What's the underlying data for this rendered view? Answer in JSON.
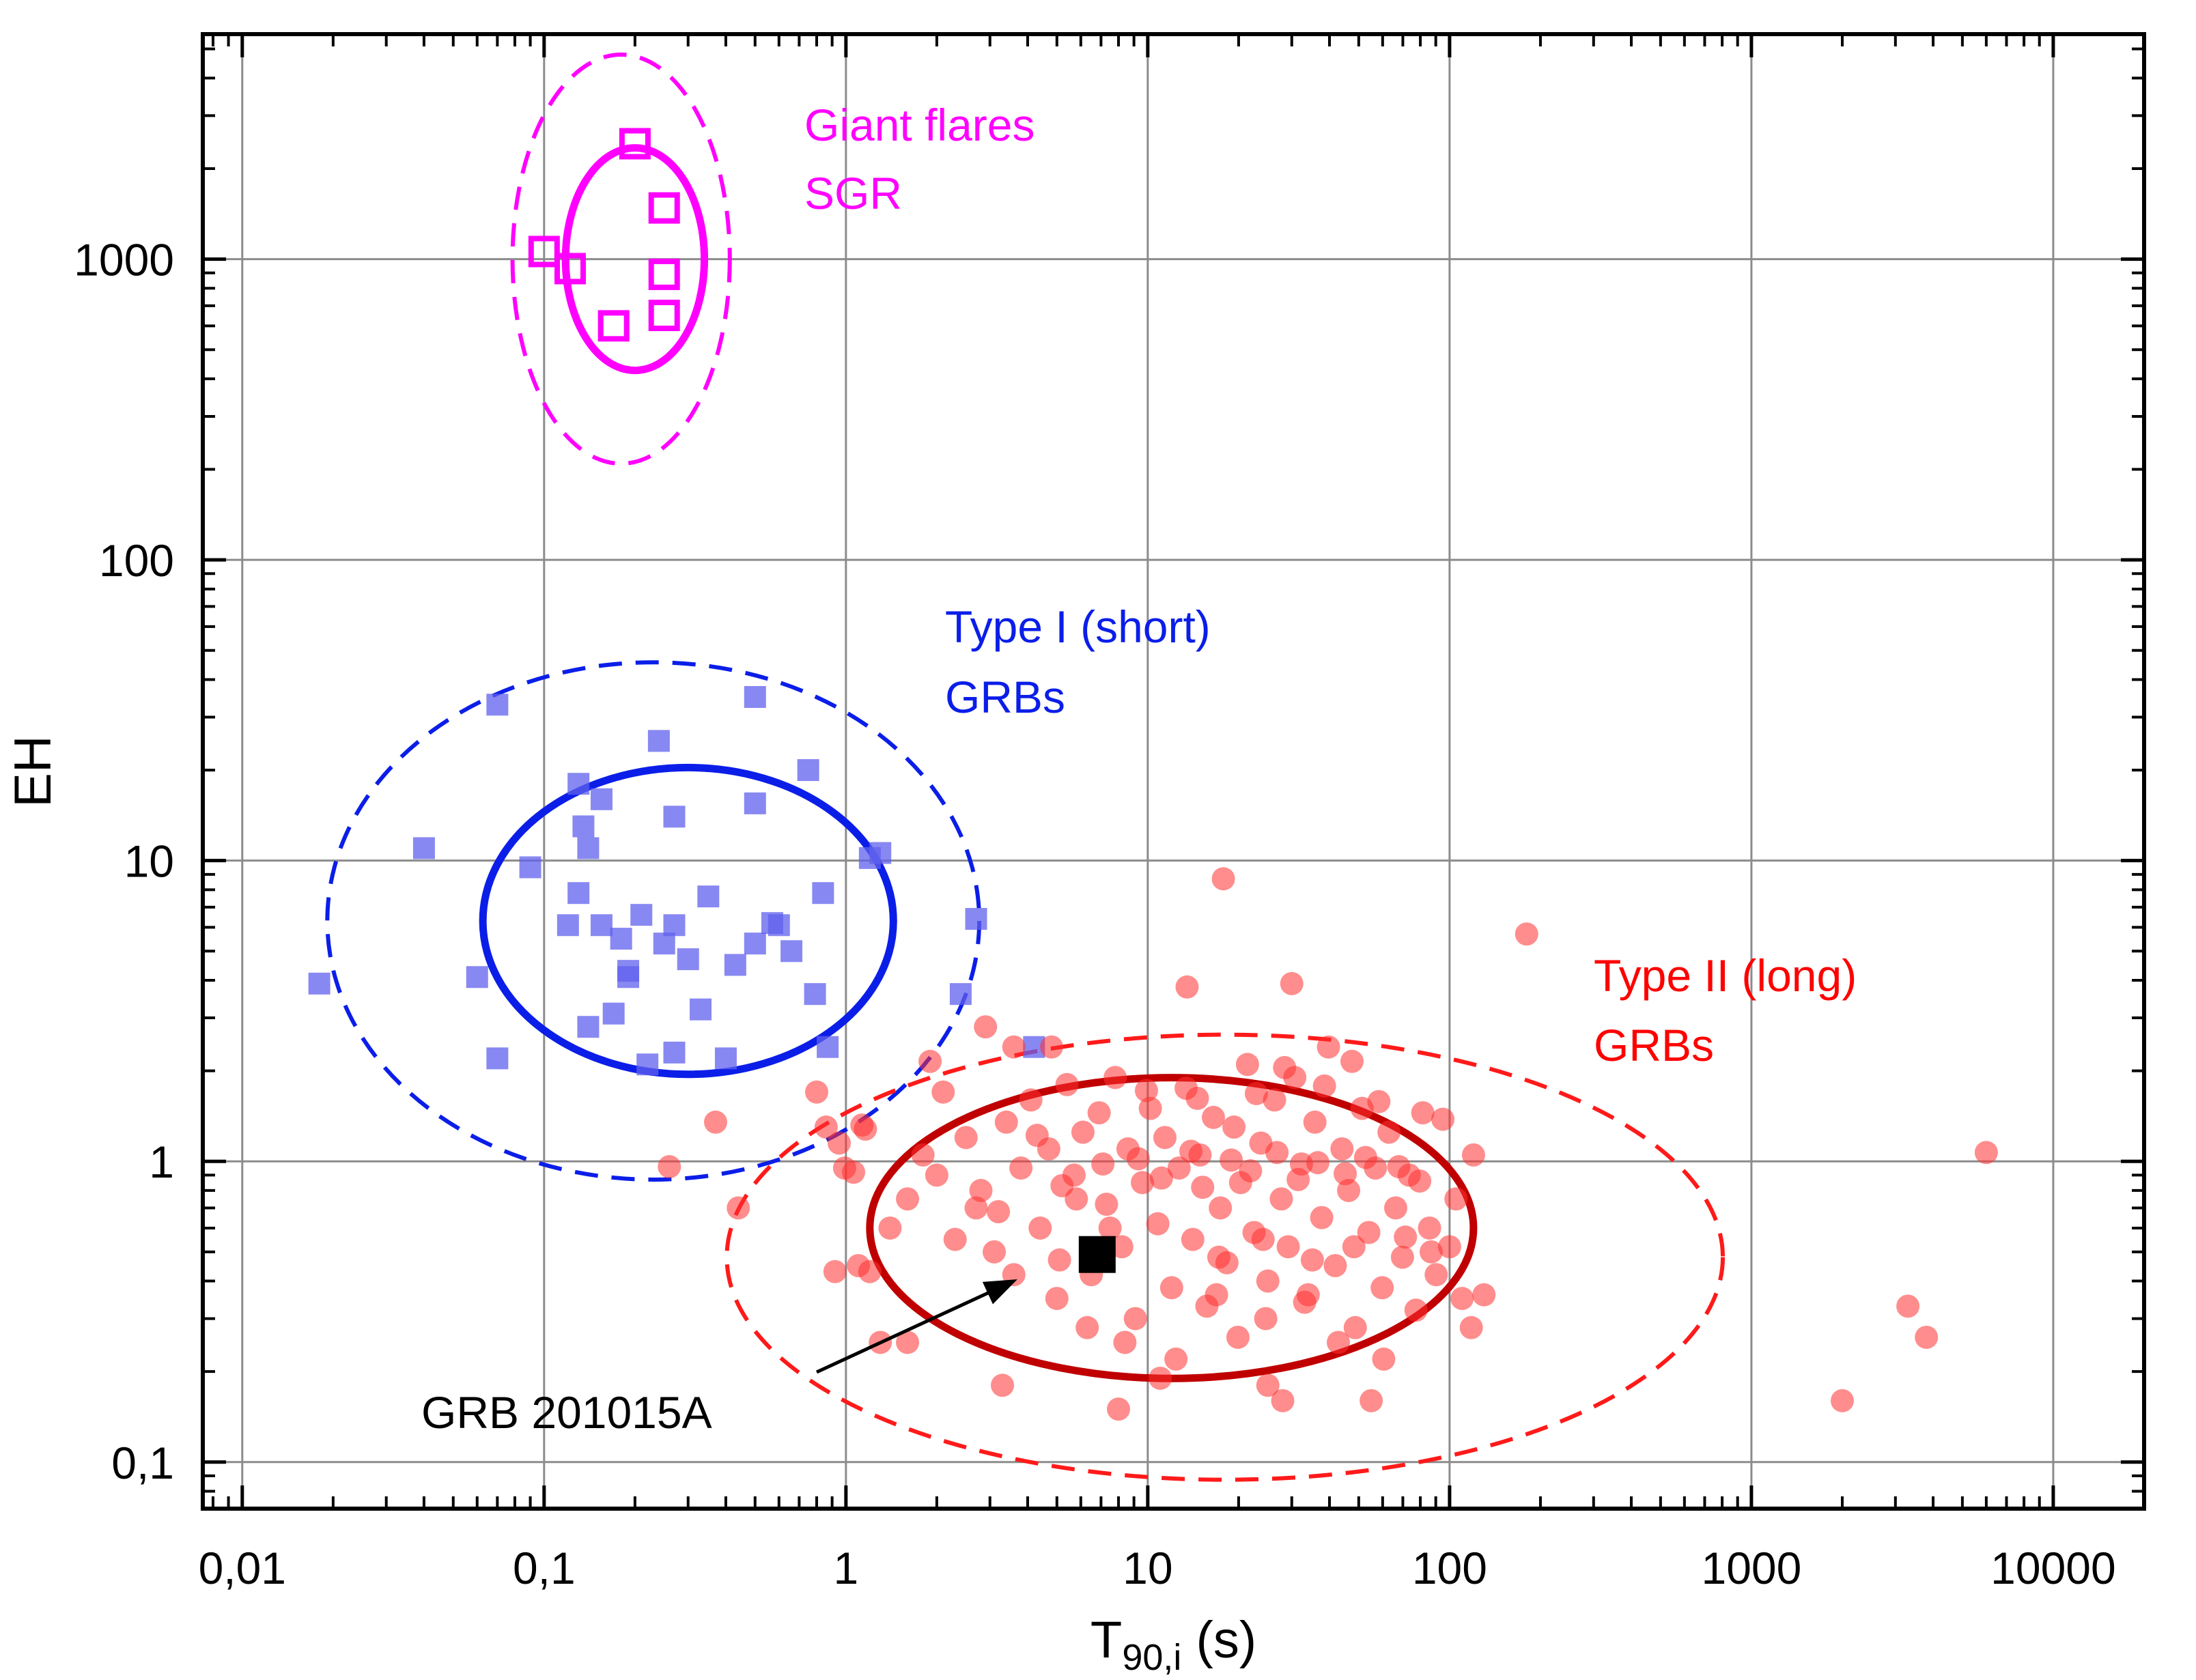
{
  "chart_data": {
    "type": "scatter",
    "xlabel": "T",
    "xlabel_sub": "90,i",
    "xlabel_unit": " (s)",
    "ylabel": "EH",
    "xscale": "log",
    "yscale": "log",
    "xlim": [
      0.0074,
      20000
    ],
    "ylim": [
      0.07,
      5600
    ],
    "grid": true,
    "x_ticks": [
      {
        "value": 0.01,
        "label": "0,01"
      },
      {
        "value": 0.1,
        "label": "0,1"
      },
      {
        "value": 1,
        "label": "1"
      },
      {
        "value": 10,
        "label": "10"
      },
      {
        "value": 100,
        "label": "100"
      },
      {
        "value": 1000,
        "label": "1000"
      },
      {
        "value": 10000,
        "label": "10000"
      }
    ],
    "y_ticks": [
      {
        "value": 0.1,
        "label": "0,1"
      },
      {
        "value": 1,
        "label": "1"
      },
      {
        "value": 10,
        "label": "10"
      },
      {
        "value": 100,
        "label": "100"
      },
      {
        "value": 1000,
        "label": "1000"
      }
    ],
    "series": [
      {
        "name": "Giant flares SGR",
        "color": "#ff00ff",
        "marker": "open-square",
        "points": [
          [
            0.1,
            1060
          ],
          [
            0.122,
            930
          ],
          [
            0.2,
            2420
          ],
          [
            0.25,
            1480
          ],
          [
            0.25,
            890
          ],
          [
            0.25,
            650
          ],
          [
            0.17,
            600
          ]
        ]
      },
      {
        "name": "Type I (short) GRBs",
        "color": "#6060ee",
        "marker": "filled-square",
        "points": [
          [
            0.018,
            3.9
          ],
          [
            0.04,
            11
          ],
          [
            0.06,
            4.1
          ],
          [
            0.07,
            2.2
          ],
          [
            0.07,
            33
          ],
          [
            0.09,
            9.5
          ],
          [
            0.12,
            6.1
          ],
          [
            0.13,
            18
          ],
          [
            0.13,
            7.8
          ],
          [
            0.135,
            13
          ],
          [
            0.14,
            11
          ],
          [
            0.14,
            2.8
          ],
          [
            0.155,
            16
          ],
          [
            0.155,
            6.1
          ],
          [
            0.17,
            3.1
          ],
          [
            0.18,
            5.5
          ],
          [
            0.19,
            4.3
          ],
          [
            0.19,
            4.1
          ],
          [
            0.21,
            6.6
          ],
          [
            0.22,
            2.1
          ],
          [
            0.24,
            25
          ],
          [
            0.25,
            5.3
          ],
          [
            0.27,
            14
          ],
          [
            0.27,
            6.1
          ],
          [
            0.27,
            2.3
          ],
          [
            0.3,
            4.7
          ],
          [
            0.33,
            3.2
          ],
          [
            0.35,
            7.6
          ],
          [
            0.4,
            2.2
          ],
          [
            0.43,
            4.5
          ],
          [
            0.5,
            35
          ],
          [
            0.5,
            15.5
          ],
          [
            0.5,
            5.3
          ],
          [
            0.6,
            6.1
          ],
          [
            0.57,
            6.2
          ],
          [
            0.66,
            5
          ],
          [
            0.75,
            20
          ],
          [
            0.79,
            3.6
          ],
          [
            0.84,
            7.8
          ],
          [
            0.87,
            2.4
          ],
          [
            1.2,
            10.2
          ],
          [
            1.3,
            10.6
          ],
          [
            2.4,
            3.6
          ],
          [
            2.7,
            6.4
          ],
          [
            4.2,
            2.4
          ]
        ]
      },
      {
        "name": "Type II (long) GRBs",
        "color": "#ff3030",
        "marker": "filled-circle",
        "points": [
          [
            0.26,
            0.96
          ],
          [
            0.37,
            1.35
          ],
          [
            0.44,
            0.7
          ],
          [
            0.8,
            1.7
          ],
          [
            0.86,
            1.3
          ],
          [
            0.92,
            0.43
          ],
          [
            0.95,
            1.15
          ],
          [
            0.99,
            0.95
          ],
          [
            1.06,
            0.92
          ],
          [
            1.1,
            0.45
          ],
          [
            1.13,
            1.32
          ],
          [
            1.16,
            1.28
          ],
          [
            1.2,
            0.43
          ],
          [
            1.3,
            0.25
          ],
          [
            1.6,
            0.25
          ],
          [
            1.9,
            2.15
          ],
          [
            2.1,
            1.7
          ],
          [
            2.9,
            2.8
          ],
          [
            3.3,
            0.18
          ],
          [
            3.6,
            2.4
          ],
          [
            4.8,
            2.4
          ],
          [
            17.8,
            8.7
          ],
          [
            13.5,
            3.8
          ],
          [
            30,
            3.9
          ],
          [
            180,
            5.7
          ],
          [
            2000,
            0.16
          ],
          [
            3300,
            0.33
          ],
          [
            3800,
            0.26
          ],
          [
            6000,
            1.07
          ],
          [
            8,
            0.15
          ],
          [
            28,
            0.16
          ],
          [
            55,
            0.16
          ],
          [
            25,
            0.18
          ],
          [
            11,
            0.19
          ],
          [
            3.2,
            0.68
          ],
          [
            5.8,
            0.75
          ],
          [
            5.1,
            0.47
          ],
          [
            7.5,
            0.6
          ],
          [
            1.4,
            0.6
          ],
          [
            1.6,
            0.75
          ],
          [
            1.8,
            1.05
          ],
          [
            2,
            0.9
          ],
          [
            2.3,
            0.55
          ],
          [
            2.5,
            1.2
          ],
          [
            2.8,
            0.8
          ],
          [
            3.1,
            0.5
          ],
          [
            3.4,
            1.35
          ],
          [
            3.8,
            0.95
          ],
          [
            4.1,
            1.6
          ],
          [
            4.4,
            0.6
          ],
          [
            4.7,
            1.1
          ],
          [
            5,
            0.35
          ],
          [
            5.4,
            1.8
          ],
          [
            5.7,
            0.9
          ],
          [
            6.1,
            1.25
          ],
          [
            6.5,
            0.42
          ],
          [
            6.9,
            1.45
          ],
          [
            7.3,
            0.72
          ],
          [
            7.8,
            1.9
          ],
          [
            8.2,
            0.52
          ],
          [
            8.6,
            1.1
          ],
          [
            9.1,
            0.3
          ],
          [
            9.6,
            0.85
          ],
          [
            10.2,
            1.5
          ],
          [
            10.8,
            0.62
          ],
          [
            11.4,
            1.2
          ],
          [
            12,
            0.38
          ],
          [
            12.7,
            0.95
          ],
          [
            13.4,
            1.75
          ],
          [
            14.1,
            0.55
          ],
          [
            14.9,
            1.05
          ],
          [
            15.7,
            0.33
          ],
          [
            16.5,
            1.4
          ],
          [
            17.4,
            0.7
          ],
          [
            18.3,
            0.46
          ],
          [
            19.3,
            1.3
          ],
          [
            20.3,
            0.85
          ],
          [
            21.4,
            2.1
          ],
          [
            22.5,
            0.58
          ],
          [
            23.7,
            1.15
          ],
          [
            25,
            0.4
          ],
          [
            26.3,
            1.6
          ],
          [
            27.7,
            0.75
          ],
          [
            29.2,
            0.52
          ],
          [
            30.7,
            1.9
          ],
          [
            32.3,
            0.98
          ],
          [
            34,
            0.36
          ],
          [
            35.8,
            1.35
          ],
          [
            37.7,
            0.65
          ],
          [
            39.7,
            2.4
          ],
          [
            41.8,
            0.45
          ],
          [
            44,
            1.1
          ],
          [
            46.3,
            0.8
          ],
          [
            48.7,
            0.28
          ],
          [
            51.3,
            1.5
          ],
          [
            54,
            0.58
          ],
          [
            56.8,
            0.95
          ],
          [
            59.8,
            0.38
          ],
          [
            63,
            1.25
          ],
          [
            66.3,
            0.7
          ],
          [
            69.8,
            0.48
          ],
          [
            73.5,
            0.9
          ],
          [
            77.4,
            0.32
          ],
          [
            81.5,
            1.45
          ],
          [
            85.8,
            0.6
          ],
          [
            90.3,
            0.42
          ],
          [
            95,
            1.38
          ],
          [
            100,
            0.52
          ],
          [
            110,
            0.35
          ],
          [
            120,
            1.05
          ],
          [
            130,
            0.36
          ],
          [
            118,
            0.28
          ],
          [
            105,
            0.75
          ],
          [
            6.3,
            0.28
          ],
          [
            8.4,
            0.25
          ],
          [
            12.4,
            0.22
          ],
          [
            16.9,
            0.36
          ],
          [
            19.9,
            0.26
          ],
          [
            24.6,
            0.3
          ],
          [
            33.1,
            0.34
          ],
          [
            42.8,
            0.25
          ],
          [
            60.5,
            0.22
          ],
          [
            7.1,
            0.98
          ],
          [
            9.3,
            1.02
          ],
          [
            11.1,
            0.88
          ],
          [
            13.9,
            1.08
          ],
          [
            15.2,
            0.82
          ],
          [
            18.9,
            1.01
          ],
          [
            21.9,
            0.93
          ],
          [
            26.8,
            1.07
          ],
          [
            31.5,
            0.87
          ],
          [
            36.6,
            0.99
          ],
          [
            45.1,
            0.91
          ],
          [
            52.7,
            1.03
          ],
          [
            67.9,
            0.96
          ],
          [
            79.6,
            0.86
          ],
          [
            5.2,
            0.83
          ],
          [
            4.3,
            1.22
          ],
          [
            3.6,
            0.42
          ],
          [
            2.7,
            0.7
          ],
          [
            9.9,
            1.72
          ],
          [
            14.6,
            1.62
          ],
          [
            22.9,
            1.68
          ],
          [
            28.4,
            2.05
          ],
          [
            38.5,
            1.78
          ],
          [
            47.5,
            2.15
          ],
          [
            58.3,
            1.58
          ],
          [
            17.2,
            0.48
          ],
          [
            24.1,
            0.55
          ],
          [
            35.1,
            0.47
          ],
          [
            48.2,
            0.52
          ],
          [
            71.4,
            0.56
          ],
          [
            86.9,
            0.5
          ]
        ]
      }
    ],
    "highlight": {
      "name": "GRB 201015A",
      "x": 6.8,
      "y": 0.49,
      "color": "#000000",
      "marker": "filled-square"
    },
    "ellipses": [
      {
        "series": "Giant flares SGR",
        "color": "#ff00ff",
        "style": "solid",
        "cx": 0.2,
        "cy": 1000,
        "rx_dex": 0.23,
        "ry_dex": 0.37
      },
      {
        "series": "Giant flares SGR",
        "color": "#ff00ff",
        "style": "dashed",
        "cx": 0.18,
        "cy": 1000,
        "rx_dex": 0.36,
        "ry_dex": 0.68
      },
      {
        "series": "Type I (short) GRBs",
        "color": "#0b1ee8",
        "style": "solid",
        "cx": 0.3,
        "cy": 6.3,
        "rx_dex": 0.68,
        "ry_dex": 0.51
      },
      {
        "series": "Type I (short) GRBs",
        "color": "#0b1ee8",
        "style": "dashed",
        "cx": 0.23,
        "cy": 6.3,
        "rx_dex": 1.08,
        "ry_dex": 0.86
      },
      {
        "series": "Type II (long) GRBs",
        "color": "#c00000",
        "style": "solid",
        "cx": 12,
        "cy": 0.6,
        "rx_dex": 1.0,
        "ry_dex": 0.5
      },
      {
        "series": "Type II (long) GRBs",
        "color": "#ff1a1a",
        "style": "dashed",
        "cx": 18,
        "cy": 0.48,
        "rx_dex": 1.65,
        "ry_dex": 0.74
      }
    ],
    "annotations": [
      {
        "lines": [
          "Giant flares",
          "SGR"
        ],
        "color": "#ff00ff"
      },
      {
        "lines": [
          "Type I (short)",
          "GRBs"
        ],
        "color": "#0b1ee8"
      },
      {
        "lines": [
          "Type II (long)",
          "GRBs"
        ],
        "color": "#ff0000"
      },
      {
        "lines": [
          "GRB 201015A"
        ],
        "color": "#000000"
      }
    ]
  }
}
